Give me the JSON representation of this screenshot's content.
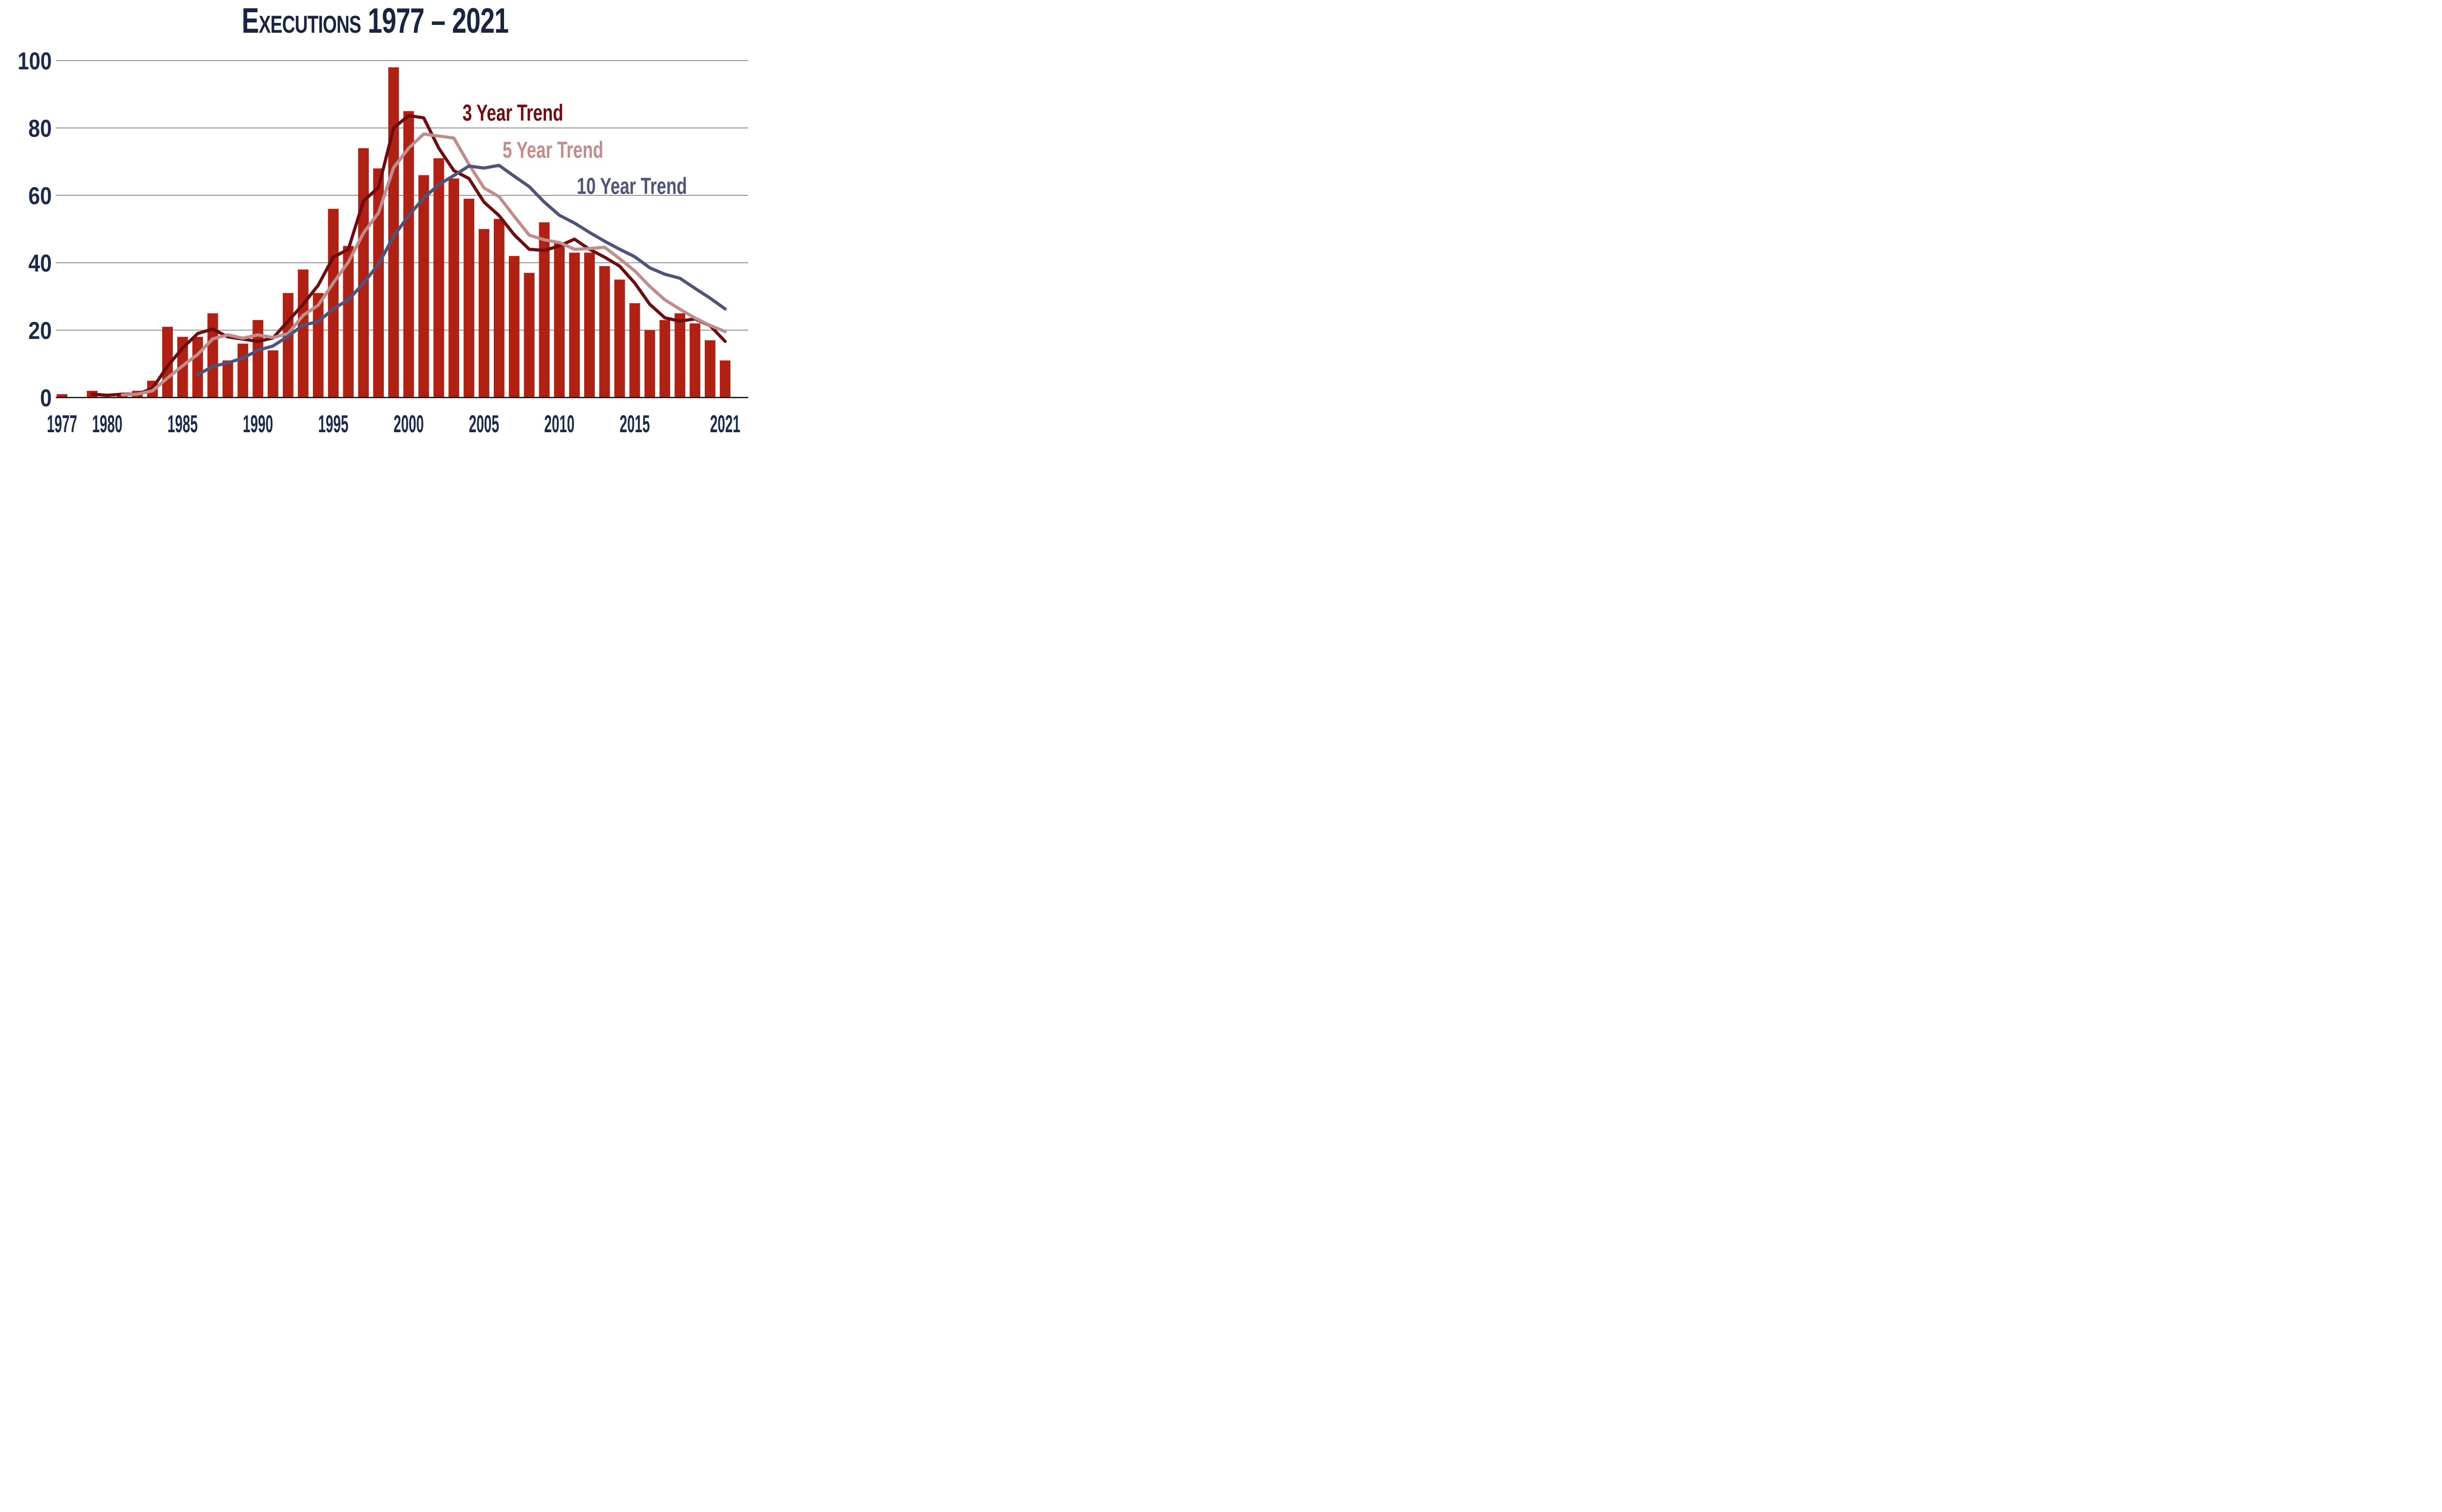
{
  "title": "Executions 1977 – 2021",
  "colors": {
    "background": "#FFFFFF",
    "bar": "#B02013",
    "trend3": "#6E0D10",
    "trend5": "#C08C8C",
    "trend10": "#4E5479",
    "title_text": "#1A2340",
    "tick_text": "#1B2A4A",
    "gridline": "#8C8C8C",
    "axis": "#0A0A0A"
  },
  "legend": [
    {
      "label": "3 Year Trend",
      "color_key": "trend3"
    },
    {
      "label": "5 Year Trend",
      "color_key": "trend5"
    },
    {
      "label": "10 Year Trend",
      "color_key": "trend10"
    }
  ],
  "chart_data": {
    "type": "bar",
    "title": "Executions 1977 – 2021",
    "xlabel": "",
    "ylabel": "",
    "ylim": [
      0,
      100
    ],
    "y_ticks": [
      0,
      20,
      40,
      60,
      80,
      100
    ],
    "x_tick_labels": [
      1977,
      1980,
      1985,
      1990,
      1995,
      2000,
      2005,
      2010,
      2015,
      2021
    ],
    "grid": "horizontal gray gridlines at each y tick, full width",
    "legend_position": "inside upper-right, stacked colored text labels",
    "years": [
      1977,
      1978,
      1979,
      1980,
      1981,
      1982,
      1983,
      1984,
      1985,
      1986,
      1987,
      1988,
      1989,
      1990,
      1991,
      1992,
      1993,
      1994,
      1995,
      1996,
      1997,
      1998,
      1999,
      2000,
      2001,
      2002,
      2003,
      2004,
      2005,
      2006,
      2007,
      2008,
      2009,
      2010,
      2011,
      2012,
      2013,
      2014,
      2015,
      2016,
      2017,
      2018,
      2019,
      2020,
      2021
    ],
    "values": [
      1,
      0,
      2,
      0,
      1,
      2,
      5,
      21,
      18,
      18,
      25,
      11,
      16,
      23,
      14,
      31,
      38,
      31,
      56,
      45,
      74,
      68,
      98,
      85,
      66,
      71,
      65,
      59,
      50,
      53,
      42,
      37,
      52,
      46,
      43,
      43,
      39,
      35,
      28,
      20,
      23,
      25,
      22,
      17,
      11
    ],
    "series": [
      {
        "name": "Executions",
        "type": "bar",
        "color_key": "bar"
      },
      {
        "name": "3 Year Trend",
        "type": "line",
        "window": 3,
        "start_year": 1979,
        "derivation": "trailing 3-year moving average of values",
        "color_key": "trend3"
      },
      {
        "name": "5 Year Trend",
        "type": "line",
        "window": 5,
        "start_year": 1981,
        "derivation": "trailing 5-year moving average of values",
        "color_key": "trend5"
      },
      {
        "name": "10 Year Trend",
        "type": "line",
        "window": 10,
        "start_year": 1986,
        "derivation": "trailing 10-year moving average of values",
        "color_key": "trend10"
      }
    ]
  }
}
